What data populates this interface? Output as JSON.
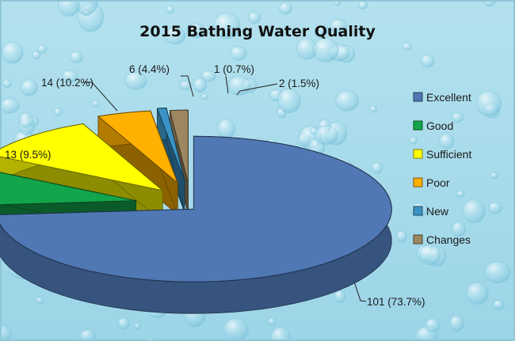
{
  "chart_data": {
    "type": "pie",
    "title": "2015 Bathing Water Quality",
    "legend_position": "right",
    "slices": [
      {
        "name": "Excellent",
        "value": 101,
        "label": "101  (73.7%)",
        "color": "#4F78B4"
      },
      {
        "name": "Good",
        "value": 13,
        "label": "13 (9.5%)",
        "color": "#13A54B"
      },
      {
        "name": "Sufficient",
        "value": 14,
        "label": "14 (10.2%)",
        "color": "#FFFF00"
      },
      {
        "name": "Poor",
        "value": 6,
        "label": "6 (4.4%)",
        "color": "#FFB000"
      },
      {
        "name": "New",
        "value": 1,
        "label": "1 (0.7%)",
        "color": "#3A93C4"
      },
      {
        "name": "Changes",
        "value": 2,
        "label": "2 (1.5%)",
        "color": "#9C8761"
      }
    ]
  },
  "background": {
    "base_color": "#A9DCEB",
    "drop_color": "#6FC0DA"
  }
}
